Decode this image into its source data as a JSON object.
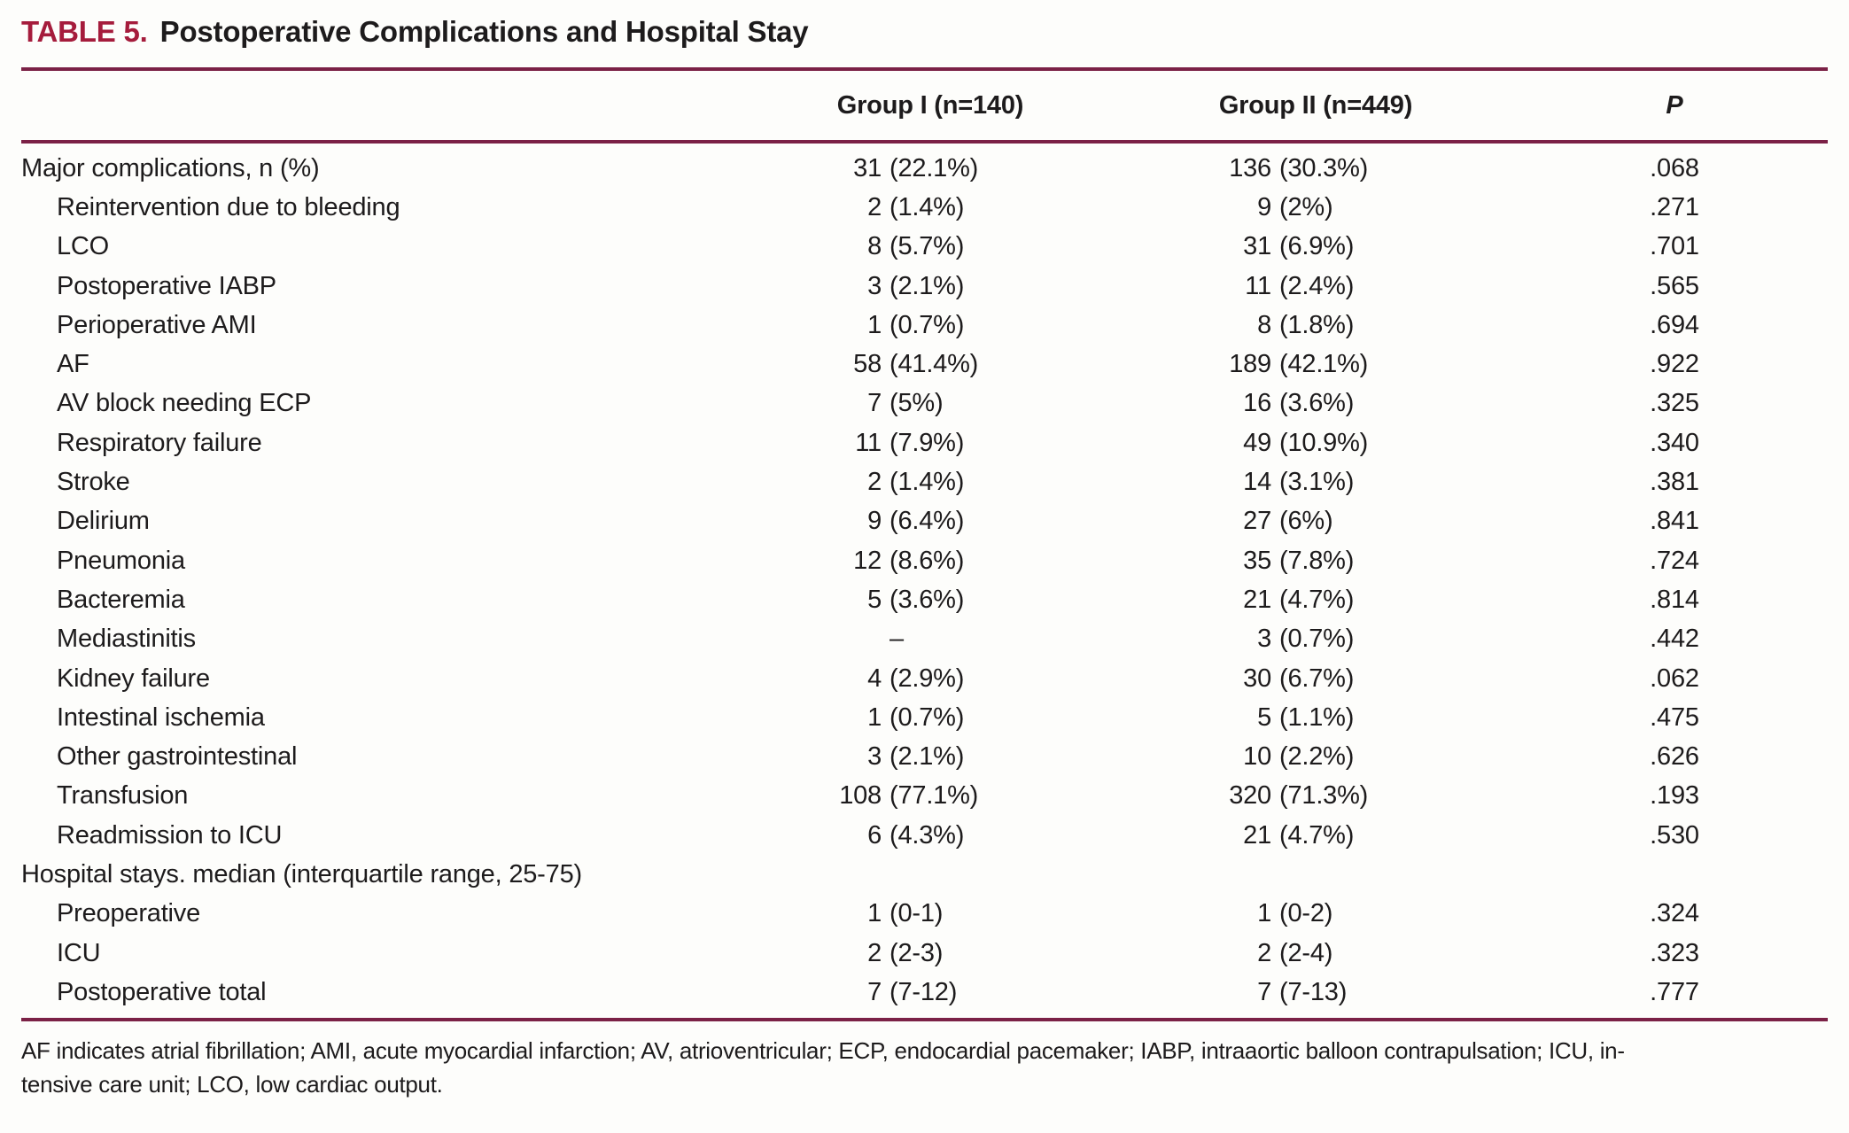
{
  "page": {
    "colors": {
      "accent": "#a51c3c",
      "rule": "#7b2146",
      "text": "#1d1b1c",
      "background": "#fdfdfb"
    }
  },
  "title": {
    "label": "TABLE 5.",
    "text": "Postoperative Complications and Hospital Stay"
  },
  "table": {
    "header": {
      "group1": "Group I (n=140)",
      "group2": "Group II (n=449)",
      "p": "P"
    },
    "rows": [
      {
        "label": "Major complications, n (%)",
        "indent": 0,
        "g1n": "31",
        "g1p": "(22.1%)",
        "g2n": "136",
        "g2p": "(30.3%)",
        "p": ".068"
      },
      {
        "label": "Reintervention due to bleeding",
        "indent": 1,
        "g1n": "2",
        "g1p": "(1.4%)",
        "g2n": "9",
        "g2p": "(2%)",
        "p": ".271"
      },
      {
        "label": "LCO",
        "indent": 1,
        "g1n": "8",
        "g1p": "(5.7%)",
        "g2n": "31",
        "g2p": "(6.9%)",
        "p": ".701"
      },
      {
        "label": "Postoperative IABP",
        "indent": 1,
        "g1n": "3",
        "g1p": "(2.1%)",
        "g2n": "11",
        "g2p": "(2.4%)",
        "p": ".565"
      },
      {
        "label": "Perioperative AMI",
        "indent": 1,
        "g1n": "1",
        "g1p": "(0.7%)",
        "g2n": "8",
        "g2p": "(1.8%)",
        "p": ".694"
      },
      {
        "label": "AF",
        "indent": 1,
        "g1n": "58",
        "g1p": "(41.4%)",
        "g2n": "189",
        "g2p": "(42.1%)",
        "p": ".922"
      },
      {
        "label": "AV block needing ECP",
        "indent": 1,
        "g1n": "7",
        "g1p": "(5%)",
        "g2n": "16",
        "g2p": "(3.6%)",
        "p": ".325"
      },
      {
        "label": "Respiratory failure",
        "indent": 1,
        "g1n": "11",
        "g1p": "(7.9%)",
        "g2n": "49",
        "g2p": "(10.9%)",
        "p": ".340"
      },
      {
        "label": "Stroke",
        "indent": 1,
        "g1n": "2",
        "g1p": "(1.4%)",
        "g2n": "14",
        "g2p": "(3.1%)",
        "p": ".381"
      },
      {
        "label": "Delirium",
        "indent": 1,
        "g1n": "9",
        "g1p": "(6.4%)",
        "g2n": "27",
        "g2p": "(6%)",
        "p": ".841"
      },
      {
        "label": "Pneumonia",
        "indent": 1,
        "g1n": "12",
        "g1p": "(8.6%)",
        "g2n": "35",
        "g2p": "(7.8%)",
        "p": ".724"
      },
      {
        "label": "Bacteremia",
        "indent": 1,
        "g1n": "5",
        "g1p": "(3.6%)",
        "g2n": "21",
        "g2p": "(4.7%)",
        "p": ".814"
      },
      {
        "label": "Mediastinitis",
        "indent": 1,
        "g1n": "",
        "g1p": "–",
        "g2n": "3",
        "g2p": "(0.7%)",
        "p": ".442"
      },
      {
        "label": "Kidney failure",
        "indent": 1,
        "g1n": "4",
        "g1p": "(2.9%)",
        "g2n": "30",
        "g2p": "(6.7%)",
        "p": ".062"
      },
      {
        "label": "Intestinal ischemia",
        "indent": 1,
        "g1n": "1",
        "g1p": "(0.7%)",
        "g2n": "5",
        "g2p": "(1.1%)",
        "p": ".475"
      },
      {
        "label": "Other gastrointestinal",
        "indent": 1,
        "g1n": "3",
        "g1p": "(2.1%)",
        "g2n": "10",
        "g2p": "(2.2%)",
        "p": ".626"
      },
      {
        "label": "Transfusion",
        "indent": 1,
        "g1n": "108",
        "g1p": "(77.1%)",
        "g2n": "320",
        "g2p": "(71.3%)",
        "p": ".193"
      },
      {
        "label": "Readmission to ICU",
        "indent": 1,
        "g1n": "6",
        "g1p": "(4.3%)",
        "g2n": "21",
        "g2p": "(4.7%)",
        "p": ".530"
      },
      {
        "label": "Hospital stays. median (interquartile range, 25-75)",
        "indent": 0,
        "g1n": "",
        "g1p": "",
        "g2n": "",
        "g2p": "",
        "p": ""
      },
      {
        "label": "Preoperative",
        "indent": 1,
        "g1n": "1",
        "g1p": "(0-1)",
        "g2n": "1",
        "g2p": "(0-2)",
        "p": ".324"
      },
      {
        "label": "ICU",
        "indent": 1,
        "g1n": "2",
        "g1p": "(2-3)",
        "g2n": "2",
        "g2p": "(2-4)",
        "p": ".323"
      },
      {
        "label": "Postoperative total",
        "indent": 1,
        "g1n": "7",
        "g1p": "(7-12)",
        "g2n": "7",
        "g2p": "(7-13)",
        "p": ".777"
      }
    ]
  },
  "footnote": {
    "line1": "AF indicates atrial fibrillation; AMI, acute myocardial infarction; AV, atrioventricular; ECP, endocardial pacemaker; IABP, intraaortic balloon contrapulsation; ICU, in-",
    "line2": "tensive care unit; LCO, low cardiac output."
  }
}
